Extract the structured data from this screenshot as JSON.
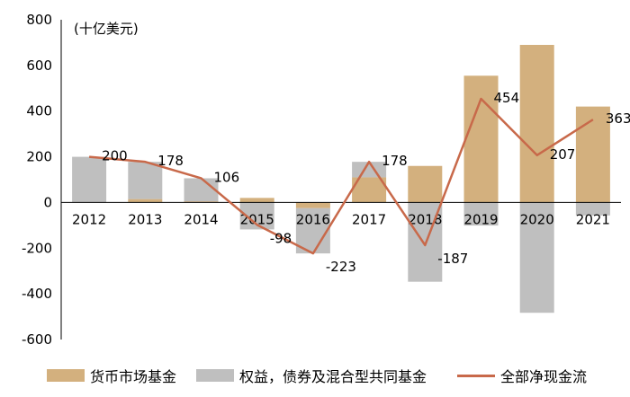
{
  "chart_data": {
    "type": "bar",
    "unit_label": "(十亿美元)",
    "categories": [
      "2012",
      "2013",
      "2014",
      "2015",
      "2016",
      "2017",
      "2018",
      "2019",
      "2020",
      "2021"
    ],
    "series": [
      {
        "name": "货币市场基金",
        "kind": "bar",
        "color": "#d3b07e",
        "values": [
          0,
          15,
          5,
          20,
          -25,
          110,
          160,
          555,
          690,
          420
        ]
      },
      {
        "name": "权益，债券及混合型共同基金",
        "kind": "bar",
        "color": "#bfbfbf",
        "values": [
          200,
          163,
          101,
          -118,
          -198,
          68,
          -347,
          -101,
          -483,
          -57
        ]
      },
      {
        "name": "全部净现金流",
        "kind": "line",
        "color": "#c8694a",
        "values": [
          200,
          178,
          106,
          -98,
          -223,
          178,
          -187,
          454,
          207,
          363
        ]
      }
    ],
    "data_labels": [
      "200",
      "178",
      "106",
      "-98",
      "-223",
      "178",
      "-187",
      "454",
      "207",
      "363"
    ],
    "yticks": [
      -600,
      -400,
      -200,
      0,
      200,
      400,
      600,
      800
    ],
    "ylim": [
      -600,
      800
    ]
  }
}
